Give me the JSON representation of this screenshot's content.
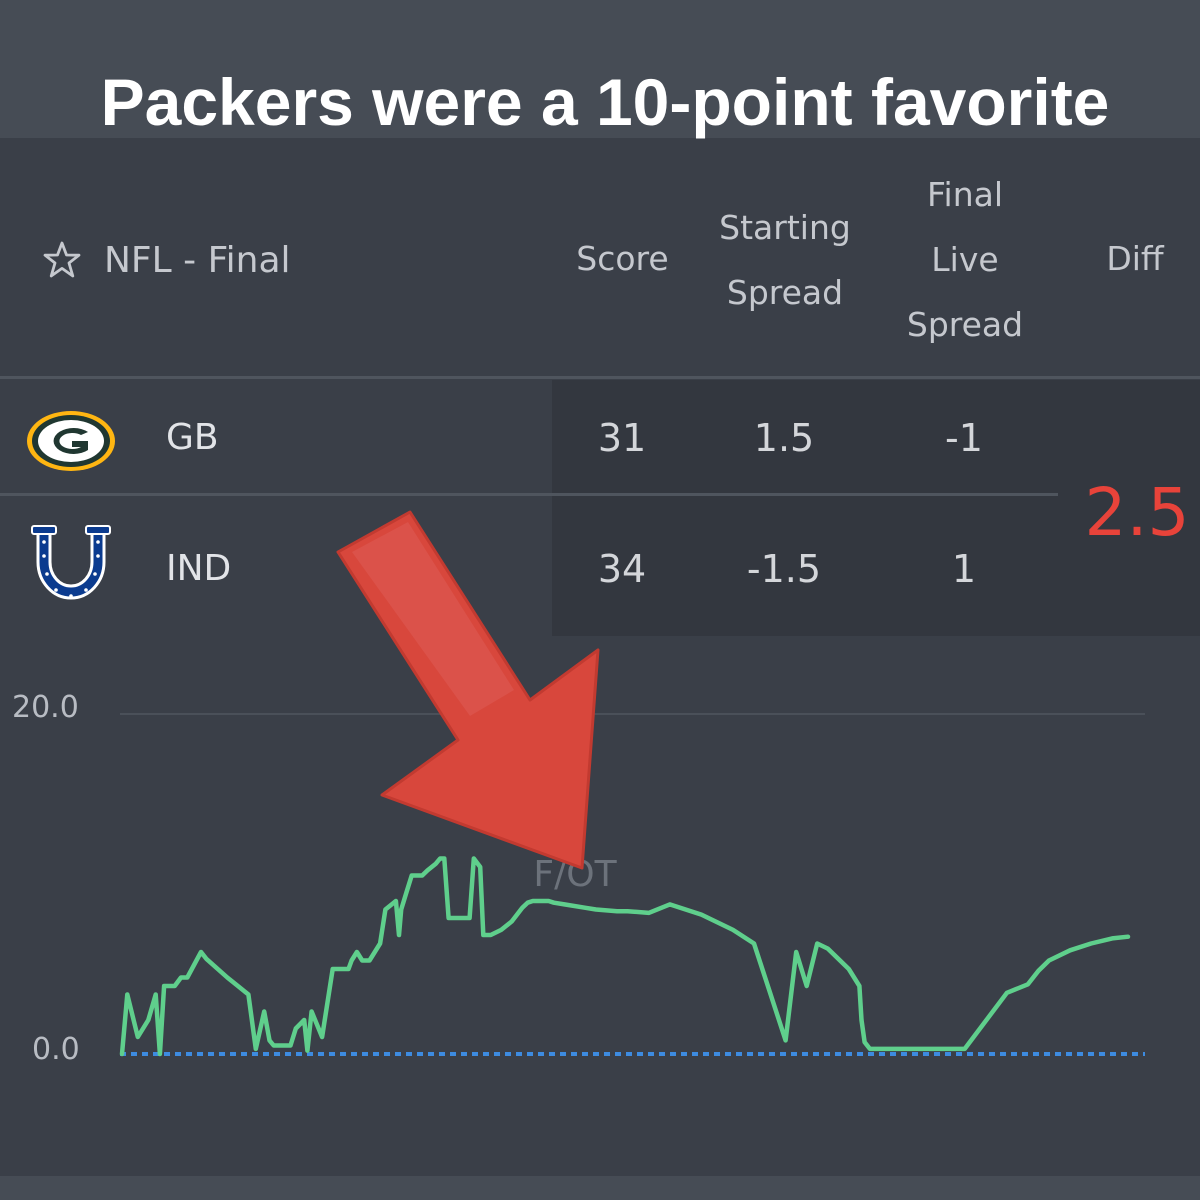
{
  "title": "Packers were a 10-point favorite",
  "league_label": "NFL - Final",
  "columns": {
    "score": "Score",
    "starting_spread": [
      "Starting",
      "Spread"
    ],
    "final_live_spread": [
      "Final",
      "Live",
      "Spread"
    ],
    "diff": "Diff"
  },
  "teams": [
    {
      "abbr": "GB",
      "score": "31",
      "starting_spread": "1.5",
      "final_live_spread": "-1",
      "logo_icon": "packers-g-logo-icon"
    },
    {
      "abbr": "IND",
      "score": "34",
      "starting_spread": "-1.5",
      "final_live_spread": "1",
      "logo_icon": "colts-horseshoe-logo-icon"
    }
  ],
  "diff": "2.5",
  "colors": {
    "diff": "#e8433a",
    "line": "#5fcf8c",
    "baseline": "#3d8be0",
    "arrow": "#d8473c"
  },
  "chart_data": {
    "type": "line",
    "y_tick_labels": [
      "20.0",
      "0.0"
    ],
    "ylim": [
      0,
      20
    ],
    "annotation": "F/OT",
    "series": [
      {
        "x": [
          0,
          0.5,
          1.5,
          2.5,
          3.2,
          3.6,
          4.0,
          4.5,
          5.0,
          5.6,
          5.9,
          6.2,
          7.5,
          8.0,
          10.0,
          11.0,
          12.0,
          12.7,
          13.5,
          14.0,
          14.4,
          15.0,
          16.0,
          16.5,
          17.3,
          17.6,
          18.0,
          19.0,
          20.0,
          21.5,
          21.8,
          22.3,
          22.8,
          23.5,
          24.0,
          24.5,
          25.0,
          26.0,
          26.3,
          26.5,
          27.0,
          27.5,
          28.5,
          29.0,
          29.8,
          30.2,
          30.6,
          31.0,
          32.5,
          33.0,
          33.4,
          34.0,
          34.3,
          35.0,
          36.0,
          37.0,
          38.0,
          38.5,
          39.0,
          39.2,
          40.5,
          41.0,
          42.0,
          44.0,
          45.0,
          47.0,
          48.0,
          50.0,
          52.0,
          55.0,
          58.0,
          60.0,
          63.0,
          64.0,
          65.0,
          66.0,
          67.0,
          69.0,
          70.0,
          70.2,
          70.5,
          71.0,
          72.0,
          74.0,
          76.0,
          77.0,
          78.0,
          80.0,
          84.0,
          86.0,
          86.5,
          87.0,
          88.0,
          90.0,
          92.0,
          94.0,
          95.5
        ],
        "y": [
          0.0,
          3.5,
          1.0,
          2.0,
          3.5,
          0.0,
          4.0,
          4.0,
          4.0,
          4.5,
          4.5,
          4.5,
          6.0,
          5.6,
          4.5,
          4.0,
          3.5,
          0.3,
          2.5,
          0.8,
          0.5,
          0.5,
          0.5,
          1.5,
          2.0,
          0.2,
          2.5,
          1.0,
          5.0,
          5.0,
          5.5,
          6.0,
          5.5,
          5.5,
          6.0,
          6.5,
          8.5,
          9.0,
          7.0,
          8.5,
          9.5,
          10.5,
          10.5,
          10.8,
          11.2,
          11.5,
          11.5,
          8.0,
          8.0,
          8.0,
          11.5,
          11.0,
          7.0,
          7.0,
          7.3,
          7.8,
          8.6,
          8.9,
          9.0,
          9.0,
          9.0,
          8.9,
          8.8,
          8.6,
          8.5,
          8.4,
          8.4,
          8.3,
          8.8,
          8.2,
          7.3,
          6.5,
          0.8,
          6.0,
          4.0,
          6.5,
          6.2,
          5.0,
          4.0,
          2.0,
          0.7,
          0.3,
          0.3,
          0.3,
          0.3,
          0.3,
          0.3,
          0.3,
          3.6,
          4.1,
          4.5,
          4.9,
          5.5,
          6.1,
          6.5,
          6.8,
          6.9
        ]
      }
    ],
    "baseline_value": 0,
    "grid": true
  }
}
